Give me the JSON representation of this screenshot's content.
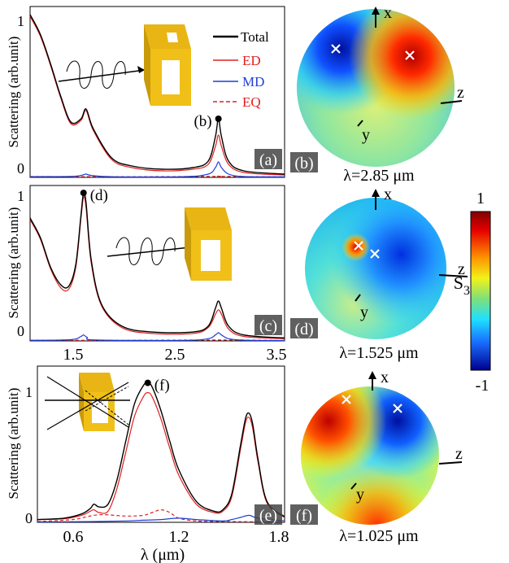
{
  "colors": {
    "total": "#000000",
    "ed": "#e02020",
    "md": "#1f3fd6",
    "eq": "#e02020",
    "gold": "#e8b514"
  },
  "legend": {
    "total": "Total",
    "ed": "ED",
    "md": "MD",
    "eq": "EQ"
  },
  "colorbar": {
    "label": "S",
    "subscript": "3",
    "max_label": "1",
    "min_label": "-1"
  },
  "chart_data": [
    {
      "type": "line",
      "panel": "(a)",
      "ylabel": "Scattering (arb.unit)",
      "xlabel": "",
      "xlim": [
        1.0,
        3.5
      ],
      "ylim": [
        0,
        1.05
      ],
      "yticks": [
        "0",
        "1"
      ],
      "xticks": [],
      "marker": {
        "label": "(b)",
        "x": 2.85,
        "y": 0.36
      },
      "series": [
        {
          "name": "Total",
          "x": [
            1.0,
            1.1,
            1.2,
            1.3,
            1.4,
            1.5,
            1.55,
            1.62,
            1.8,
            2.0,
            2.3,
            2.6,
            2.75,
            2.82,
            2.85,
            2.88,
            2.95,
            3.1,
            3.5
          ],
          "y": [
            1.0,
            0.88,
            0.7,
            0.5,
            0.34,
            0.36,
            0.42,
            0.3,
            0.12,
            0.07,
            0.05,
            0.06,
            0.1,
            0.25,
            0.36,
            0.25,
            0.1,
            0.04,
            0.02
          ]
        },
        {
          "name": "ED",
          "x": [
            1.0,
            1.1,
            1.2,
            1.3,
            1.4,
            1.5,
            1.55,
            1.62,
            1.8,
            2.0,
            2.3,
            2.6,
            2.75,
            2.82,
            2.85,
            2.88,
            2.95,
            3.1,
            3.5
          ],
          "y": [
            0.99,
            0.87,
            0.69,
            0.49,
            0.33,
            0.35,
            0.41,
            0.29,
            0.11,
            0.06,
            0.04,
            0.05,
            0.08,
            0.19,
            0.26,
            0.19,
            0.08,
            0.03,
            0.015
          ]
        },
        {
          "name": "MD",
          "x": [
            1.0,
            1.4,
            1.5,
            1.55,
            1.6,
            1.8,
            2.5,
            2.75,
            2.82,
            2.85,
            2.88,
            2.95,
            3.1,
            3.5
          ],
          "y": [
            0.004,
            0.006,
            0.012,
            0.02,
            0.012,
            0.004,
            0.004,
            0.02,
            0.06,
            0.095,
            0.06,
            0.02,
            0.005,
            0.003
          ]
        },
        {
          "name": "EQ",
          "x": [
            1.0,
            2.0,
            2.8,
            2.85,
            2.9,
            3.5
          ],
          "y": [
            0.005,
            0.004,
            0.006,
            0.008,
            0.006,
            0.003
          ]
        }
      ]
    },
    {
      "type": "line",
      "panel": "(c)",
      "ylabel": "Scattering (arb.unit)",
      "xlabel": "",
      "xlim": [
        1.0,
        3.5
      ],
      "ylim": [
        0,
        1.05
      ],
      "yticks": [
        "0",
        "1"
      ],
      "xticks": [
        "1.5",
        "2.5",
        "3.5"
      ],
      "marker": {
        "label": "(d)",
        "x": 1.525,
        "y": 1.0
      },
      "series": [
        {
          "name": "Total",
          "x": [
            1.0,
            1.1,
            1.2,
            1.3,
            1.38,
            1.45,
            1.5,
            1.525,
            1.55,
            1.6,
            1.7,
            1.9,
            2.2,
            2.6,
            2.75,
            2.82,
            2.85,
            2.88,
            2.95,
            3.1,
            3.5
          ],
          "y": [
            0.83,
            0.7,
            0.5,
            0.38,
            0.37,
            0.52,
            0.85,
            1.0,
            0.93,
            0.55,
            0.25,
            0.1,
            0.06,
            0.06,
            0.1,
            0.22,
            0.27,
            0.22,
            0.1,
            0.04,
            0.02
          ]
        },
        {
          "name": "ED",
          "x": [
            1.0,
            1.1,
            1.2,
            1.3,
            1.38,
            1.45,
            1.5,
            1.525,
            1.55,
            1.6,
            1.7,
            1.9,
            2.2,
            2.6,
            2.75,
            2.82,
            2.85,
            2.88,
            2.95,
            3.1,
            3.5
          ],
          "y": [
            0.82,
            0.69,
            0.49,
            0.36,
            0.35,
            0.5,
            0.83,
            0.97,
            0.9,
            0.53,
            0.24,
            0.09,
            0.05,
            0.05,
            0.09,
            0.18,
            0.21,
            0.18,
            0.08,
            0.03,
            0.015
          ]
        },
        {
          "name": "MD",
          "x": [
            1.0,
            1.4,
            1.5,
            1.525,
            1.56,
            1.65,
            2.5,
            2.75,
            2.82,
            2.85,
            2.88,
            2.95,
            3.1,
            3.5
          ],
          "y": [
            0.004,
            0.008,
            0.03,
            0.04,
            0.025,
            0.006,
            0.004,
            0.015,
            0.04,
            0.055,
            0.04,
            0.015,
            0.005,
            0.003
          ]
        },
        {
          "name": "EQ",
          "x": [
            1.0,
            2.0,
            2.85,
            3.5
          ],
          "y": [
            0.005,
            0.004,
            0.006,
            0.003
          ]
        }
      ]
    },
    {
      "type": "line",
      "panel": "(e)",
      "ylabel": "Scattering (arb.unit)",
      "xlabel": "λ (μm)",
      "xlim": [
        0.4,
        1.8
      ],
      "ylim": [
        0,
        1.12
      ],
      "yticks": [
        "0",
        "1"
      ],
      "xticks": [
        "0.6",
        "1.2",
        "1.8"
      ],
      "marker": {
        "label": "(f)",
        "x": 1.025,
        "y": 1.0
      },
      "series": [
        {
          "name": "Total",
          "x": [
            0.4,
            0.55,
            0.65,
            0.7,
            0.72,
            0.75,
            0.8,
            0.85,
            0.9,
            0.95,
            1.0,
            1.025,
            1.05,
            1.1,
            1.15,
            1.2,
            1.3,
            1.4,
            1.45,
            1.5,
            1.55,
            1.58,
            1.6,
            1.62,
            1.65,
            1.7,
            1.8
          ],
          "y": [
            0.02,
            0.03,
            0.06,
            0.1,
            0.13,
            0.11,
            0.13,
            0.3,
            0.58,
            0.85,
            0.98,
            1.0,
            0.97,
            0.8,
            0.58,
            0.38,
            0.15,
            0.08,
            0.09,
            0.2,
            0.55,
            0.75,
            0.78,
            0.7,
            0.45,
            0.15,
            0.04
          ]
        },
        {
          "name": "ED",
          "x": [
            0.4,
            0.55,
            0.65,
            0.7,
            0.72,
            0.75,
            0.8,
            0.85,
            0.9,
            0.95,
            1.0,
            1.025,
            1.05,
            1.1,
            1.15,
            1.2,
            1.3,
            1.4,
            1.45,
            1.5,
            1.55,
            1.58,
            1.6,
            1.62,
            1.65,
            1.7,
            1.8
          ],
          "y": [
            0.02,
            0.025,
            0.05,
            0.08,
            0.09,
            0.07,
            0.08,
            0.24,
            0.5,
            0.76,
            0.9,
            0.93,
            0.9,
            0.74,
            0.53,
            0.34,
            0.13,
            0.07,
            0.08,
            0.18,
            0.52,
            0.72,
            0.75,
            0.67,
            0.43,
            0.14,
            0.035
          ]
        },
        {
          "name": "MD",
          "x": [
            0.4,
            0.7,
            0.9,
            1.0,
            1.1,
            1.2,
            1.3,
            1.45,
            1.5,
            1.55,
            1.6,
            1.65,
            1.8
          ],
          "y": [
            0.003,
            0.005,
            0.01,
            0.015,
            0.02,
            0.03,
            0.02,
            0.01,
            0.02,
            0.035,
            0.05,
            0.03,
            0.01
          ]
        },
        {
          "name": "EQ",
          "x": [
            0.4,
            0.6,
            0.68,
            0.72,
            0.78,
            0.9,
            1.0,
            1.05,
            1.1,
            1.15,
            1.2,
            1.3,
            1.45,
            1.6,
            1.8
          ],
          "y": [
            0.005,
            0.02,
            0.04,
            0.05,
            0.055,
            0.045,
            0.05,
            0.07,
            0.09,
            0.07,
            0.03,
            0.01,
            0.006,
            0.004,
            0.003
          ]
        }
      ]
    }
  ],
  "far_field": [
    {
      "panel": "(b)",
      "caption": "λ=2.85 μm",
      "axes": {
        "x": "x",
        "y": "y",
        "z": "z"
      }
    },
    {
      "panel": "(d)",
      "caption": "λ=1.525 μm",
      "axes": {
        "x": "x",
        "y": "y",
        "z": "z"
      }
    },
    {
      "panel": "(f)",
      "caption": "λ=1.025 μm",
      "axes": {
        "x": "x",
        "y": "y",
        "z": "z"
      }
    }
  ]
}
